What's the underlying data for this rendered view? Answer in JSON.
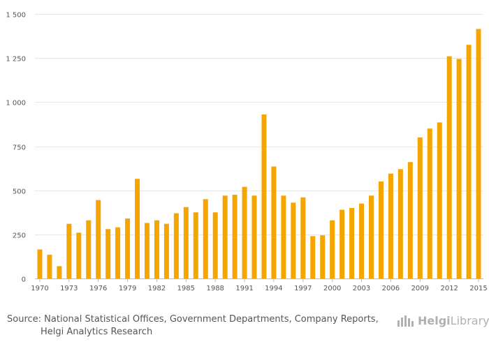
{
  "colors": {
    "bar": "#f5a500",
    "grid": "#e6e6e6",
    "text": "#555555",
    "logo": "#b0b0b0"
  },
  "chart_data": {
    "type": "bar",
    "title": "",
    "xlabel": "",
    "ylabel": "",
    "ylim": [
      0,
      1500
    ],
    "yticks": [
      0,
      250,
      500,
      750,
      1000,
      1250,
      1500
    ],
    "ytick_labels": [
      "0",
      "250",
      "500",
      "750",
      "1 000",
      "1 250",
      "1 500"
    ],
    "xtick_labels": [
      "1970",
      "1973",
      "1976",
      "1979",
      "1982",
      "1985",
      "1988",
      "1991",
      "1994",
      "1997",
      "2000",
      "2003",
      "2006",
      "2009",
      "2012",
      "2015"
    ],
    "categories": [
      "1970",
      "1971",
      "1972",
      "1973",
      "1974",
      "1975",
      "1976",
      "1977",
      "1978",
      "1979",
      "1980",
      "1981",
      "1982",
      "1983",
      "1984",
      "1985",
      "1986",
      "1987",
      "1988",
      "1989",
      "1990",
      "1991",
      "1992",
      "1993",
      "1994",
      "1995",
      "1996",
      "1997",
      "1998",
      "1999",
      "2000",
      "2001",
      "2002",
      "2003",
      "2004",
      "2005",
      "2006",
      "2007",
      "2008",
      "2009",
      "2010",
      "2011",
      "2012",
      "2013",
      "2014",
      "2015"
    ],
    "values": [
      165,
      135,
      70,
      310,
      260,
      330,
      445,
      280,
      290,
      340,
      565,
      315,
      330,
      310,
      370,
      405,
      375,
      450,
      375,
      470,
      475,
      520,
      470,
      930,
      635,
      470,
      430,
      460,
      240,
      245,
      330,
      390,
      400,
      425,
      470,
      550,
      595,
      620,
      660,
      800,
      850,
      885,
      1260,
      1245,
      1325,
      1415
    ]
  },
  "footer": {
    "source_label": "Source:",
    "source_line1": "National Statistical Offices, Government Departments, Company Reports,",
    "source_line2": "Helgi Analytics Research",
    "logo_part1": "Helgi",
    "logo_part2": "Library"
  }
}
